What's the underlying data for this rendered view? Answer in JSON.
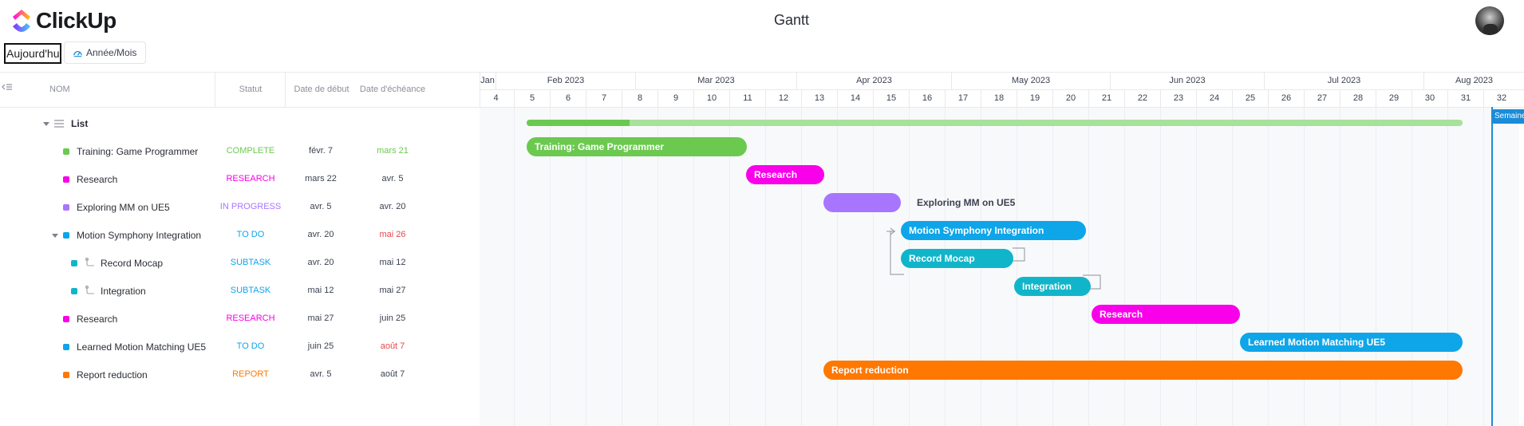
{
  "app": {
    "logo_text": "ClickUp",
    "page_title": "Gantt"
  },
  "toolbar": {
    "today_label": "Aujourd'hui",
    "scale_label": "Année/Mois"
  },
  "table": {
    "headers": {
      "name": "NOM",
      "status": "Statut",
      "start": "Date de début",
      "due": "Date d'échéance"
    },
    "list_label": "List",
    "rows": [
      {
        "name": "Training: Game Programmer",
        "status": "COMPLETE",
        "status_color": "#6bc950",
        "start": "févr. 7",
        "due": "mars 21",
        "due_color": "#6bc950",
        "dot": "#6bc950"
      },
      {
        "name": "Research",
        "status": "RESEARCH",
        "status_color": "#f900ea",
        "start": "mars 22",
        "due": "avr. 5",
        "due_color": "#3c4251",
        "dot": "#f900ea"
      },
      {
        "name": "Exploring MM on UE5",
        "status": "IN PROGRESS",
        "status_color": "#a875ff",
        "start": "avr. 5",
        "due": "avr. 20",
        "due_color": "#3c4251",
        "dot": "#a875ff"
      },
      {
        "name": "Motion Symphony Integration",
        "status": "TO DO",
        "status_color": "#0ea5e9",
        "start": "avr. 20",
        "due": "mai 26",
        "due_color": "#e5484d",
        "dot": "#0ea5e9"
      },
      {
        "name": "Record Mocap",
        "status": "SUBTASK",
        "status_color": "#0ea5e9",
        "start": "avr. 20",
        "due": "mai 12",
        "due_color": "#3c4251",
        "dot": "#11b5c9"
      },
      {
        "name": "Integration",
        "status": "SUBTASK",
        "status_color": "#0ea5e9",
        "start": "mai 12",
        "due": "mai 27",
        "due_color": "#3c4251",
        "dot": "#11b5c9"
      },
      {
        "name": "Research",
        "status": "RESEARCH",
        "status_color": "#f900ea",
        "start": "mai 27",
        "due": "juin 25",
        "due_color": "#3c4251",
        "dot": "#f900ea"
      },
      {
        "name": "Learned Motion Matching UE5",
        "status": "TO DO",
        "status_color": "#0ea5e9",
        "start": "juin 25",
        "due": "août 7",
        "due_color": "#e5484d",
        "dot": "#0ea5e9"
      },
      {
        "name": "Report reduction",
        "status": "REPORT",
        "status_color": "#ff7800",
        "start": "avr. 5",
        "due": "août 7",
        "due_color": "#3c4251",
        "dot": "#ff7800"
      }
    ]
  },
  "timeline": {
    "months": [
      "Jan",
      "Feb 2023",
      "Mar 2023",
      "Apr 2023",
      "May 2023",
      "Jun 2023",
      "Jul 2023",
      "Aug 2023"
    ],
    "weeks": [
      "4",
      "5",
      "6",
      "7",
      "8",
      "9",
      "10",
      "11",
      "12",
      "13",
      "14",
      "15",
      "16",
      "17",
      "18",
      "19",
      "20",
      "21",
      "22",
      "23",
      "24",
      "25",
      "26",
      "27",
      "28",
      "29",
      "30",
      "31",
      "32"
    ],
    "today_label": "Semaine",
    "bars": [
      {
        "label": "Training: Game Programmer",
        "color": "#6bc950"
      },
      {
        "label": "Research",
        "color": "#f900ea"
      },
      {
        "label": "Exploring MM on UE5",
        "color": "#a875ff"
      },
      {
        "label": "Motion Symphony Integration",
        "color": "#0ea5e9"
      },
      {
        "label": "Record Mocap",
        "color": "#11b5c9"
      },
      {
        "label": "Integration",
        "color": "#11b5c9"
      },
      {
        "label": "Research",
        "color": "#f900ea"
      },
      {
        "label": "Learned Motion Matching UE5",
        "color": "#0ea5e9"
      },
      {
        "label": "Report reduction",
        "color": "#ff7800"
      }
    ],
    "summary_progress": 0.11
  }
}
